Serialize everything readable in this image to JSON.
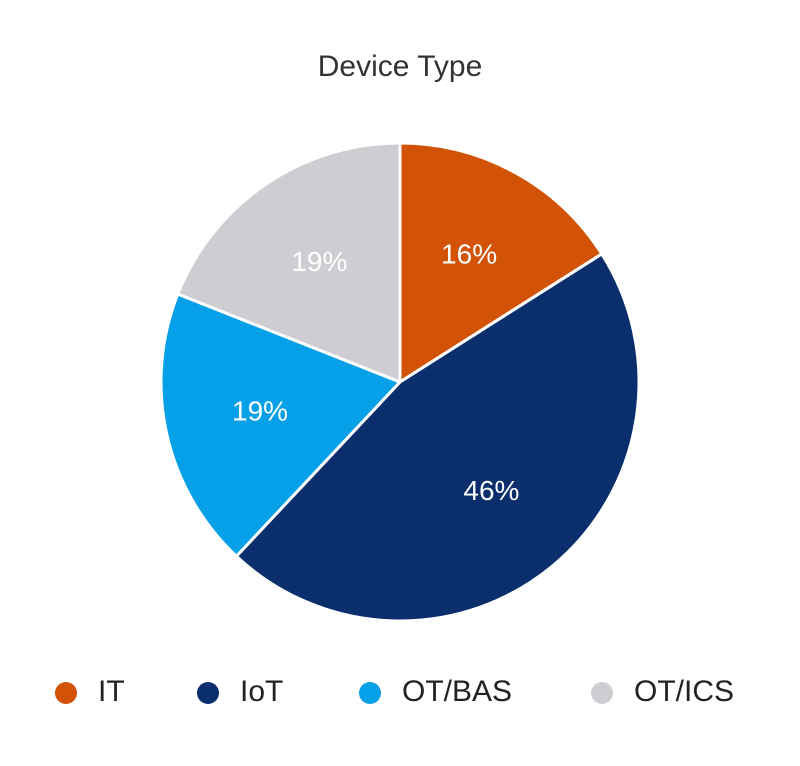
{
  "chart_data": {
    "type": "pie",
    "title": "Device Type",
    "categories": [
      "IT",
      "IoT",
      "OT/BAS",
      "OT/ICS"
    ],
    "values": [
      16,
      46,
      19,
      19
    ],
    "value_labels": [
      "16%",
      "46%",
      "19%",
      "19%"
    ],
    "colors": [
      "#d35306",
      "#0b2e6c",
      "#06a0e8",
      "#cfcdd2"
    ],
    "legend": "bottom"
  }
}
